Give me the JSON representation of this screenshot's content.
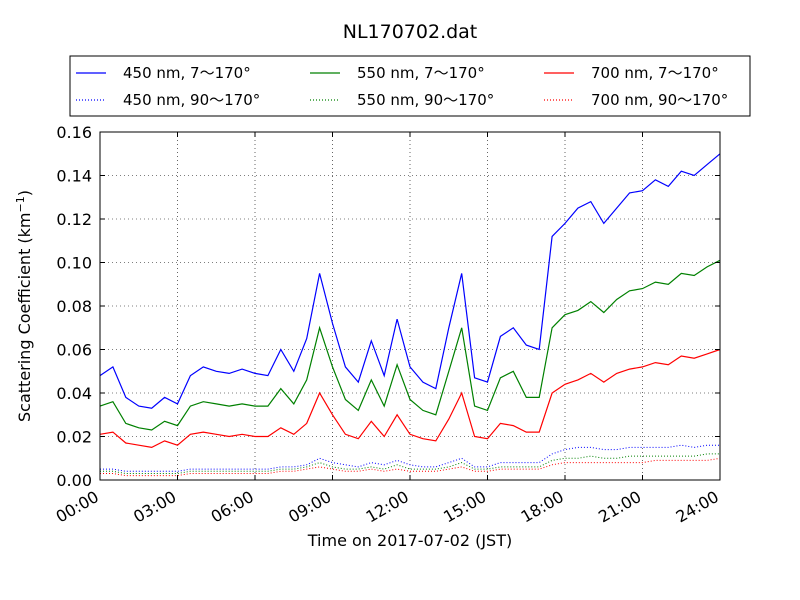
{
  "chart_data": {
    "type": "line",
    "title": "NL170702.dat",
    "xlabel": "Time on 2017-07-02 (JST)",
    "ylabel": "Scattering Coefficient (km",
    "ylabel_sup": "−1",
    "ylabel_close": ")",
    "xlim": [
      0,
      24
    ],
    "ylim": [
      0,
      0.16
    ],
    "xticks": [
      0,
      3,
      6,
      9,
      12,
      15,
      18,
      21,
      24
    ],
    "xtick_labels": [
      "00:00",
      "03:00",
      "06:00",
      "09:00",
      "12:00",
      "15:00",
      "18:00",
      "21:00",
      "24:00"
    ],
    "yticks": [
      0,
      0.02,
      0.04,
      0.06,
      0.08,
      0.1,
      0.12,
      0.14,
      0.16
    ],
    "ytick_labels": [
      "0.00",
      "0.02",
      "0.04",
      "0.06",
      "0.08",
      "0.10",
      "0.12",
      "0.14",
      "0.16"
    ],
    "grid": true,
    "legend_position": "top",
    "x_hours": [
      0,
      0.5,
      1,
      1.5,
      2,
      2.5,
      3,
      3.5,
      4,
      4.5,
      5,
      5.5,
      6,
      6.5,
      7,
      7.5,
      8,
      8.5,
      9,
      9.5,
      10,
      10.5,
      11,
      11.5,
      12,
      12.5,
      13,
      13.5,
      14,
      14.5,
      15,
      15.5,
      16,
      16.5,
      17,
      17.5,
      18,
      18.5,
      19,
      19.5,
      20,
      20.5,
      21,
      21.5,
      22,
      22.5,
      23,
      23.5,
      24
    ],
    "series": [
      {
        "name": "450 nm, 7～170°",
        "color": "#0000ff",
        "style": "solid",
        "values": [
          0.048,
          0.052,
          0.038,
          0.034,
          0.033,
          0.038,
          0.035,
          0.048,
          0.052,
          0.05,
          0.049,
          0.051,
          0.049,
          0.048,
          0.06,
          0.05,
          0.065,
          0.095,
          0.072,
          0.052,
          0.045,
          0.064,
          0.048,
          0.074,
          0.052,
          0.045,
          0.042,
          0.07,
          0.095,
          0.047,
          0.045,
          0.066,
          0.07,
          0.062,
          0.06,
          0.112,
          0.118,
          0.125,
          0.128,
          0.118,
          0.125,
          0.132,
          0.133,
          0.138,
          0.135,
          0.142,
          0.14,
          0.145,
          0.15
        ]
      },
      {
        "name": "450 nm, 90～170°",
        "color": "#0000ff",
        "style": "dotted",
        "values": [
          0.005,
          0.005,
          0.004,
          0.004,
          0.004,
          0.004,
          0.004,
          0.005,
          0.005,
          0.005,
          0.005,
          0.005,
          0.005,
          0.005,
          0.006,
          0.006,
          0.007,
          0.01,
          0.008,
          0.007,
          0.006,
          0.008,
          0.007,
          0.009,
          0.007,
          0.006,
          0.006,
          0.008,
          0.01,
          0.006,
          0.006,
          0.008,
          0.008,
          0.008,
          0.008,
          0.012,
          0.014,
          0.015,
          0.015,
          0.014,
          0.014,
          0.015,
          0.015,
          0.015,
          0.015,
          0.016,
          0.015,
          0.016,
          0.016
        ]
      },
      {
        "name": "550 nm, 7～170°",
        "color": "#008000",
        "style": "solid",
        "values": [
          0.034,
          0.036,
          0.026,
          0.024,
          0.023,
          0.027,
          0.025,
          0.034,
          0.036,
          0.035,
          0.034,
          0.035,
          0.034,
          0.034,
          0.042,
          0.035,
          0.046,
          0.07,
          0.052,
          0.037,
          0.032,
          0.046,
          0.034,
          0.053,
          0.037,
          0.032,
          0.03,
          0.05,
          0.07,
          0.034,
          0.032,
          0.047,
          0.05,
          0.038,
          0.038,
          0.07,
          0.076,
          0.078,
          0.082,
          0.077,
          0.083,
          0.087,
          0.088,
          0.091,
          0.09,
          0.095,
          0.094,
          0.098,
          0.101
        ]
      },
      {
        "name": "550 nm, 90～170°",
        "color": "#008000",
        "style": "dotted",
        "values": [
          0.004,
          0.004,
          0.003,
          0.003,
          0.003,
          0.003,
          0.003,
          0.004,
          0.004,
          0.004,
          0.004,
          0.004,
          0.004,
          0.004,
          0.005,
          0.005,
          0.006,
          0.008,
          0.006,
          0.005,
          0.005,
          0.006,
          0.005,
          0.007,
          0.005,
          0.005,
          0.005,
          0.006,
          0.008,
          0.005,
          0.005,
          0.006,
          0.006,
          0.006,
          0.006,
          0.009,
          0.01,
          0.01,
          0.011,
          0.01,
          0.01,
          0.011,
          0.011,
          0.011,
          0.011,
          0.011,
          0.011,
          0.012,
          0.012
        ]
      },
      {
        "name": "700 nm, 7～170°",
        "color": "#ff0000",
        "style": "solid",
        "values": [
          0.021,
          0.022,
          0.017,
          0.016,
          0.015,
          0.018,
          0.016,
          0.021,
          0.022,
          0.021,
          0.02,
          0.021,
          0.02,
          0.02,
          0.024,
          0.021,
          0.026,
          0.04,
          0.03,
          0.021,
          0.019,
          0.027,
          0.02,
          0.03,
          0.021,
          0.019,
          0.018,
          0.028,
          0.04,
          0.02,
          0.019,
          0.026,
          0.025,
          0.022,
          0.022,
          0.04,
          0.044,
          0.046,
          0.049,
          0.045,
          0.049,
          0.051,
          0.052,
          0.054,
          0.053,
          0.057,
          0.056,
          0.058,
          0.06
        ]
      },
      {
        "name": "700 nm, 90～170°",
        "color": "#ff0000",
        "style": "dotted",
        "values": [
          0.003,
          0.003,
          0.002,
          0.002,
          0.002,
          0.002,
          0.002,
          0.003,
          0.003,
          0.003,
          0.003,
          0.003,
          0.003,
          0.003,
          0.004,
          0.004,
          0.005,
          0.006,
          0.005,
          0.004,
          0.004,
          0.005,
          0.004,
          0.005,
          0.004,
          0.004,
          0.004,
          0.005,
          0.006,
          0.004,
          0.004,
          0.005,
          0.005,
          0.005,
          0.005,
          0.007,
          0.008,
          0.008,
          0.008,
          0.008,
          0.008,
          0.008,
          0.008,
          0.009,
          0.009,
          0.009,
          0.009,
          0.009,
          0.01
        ]
      }
    ]
  }
}
